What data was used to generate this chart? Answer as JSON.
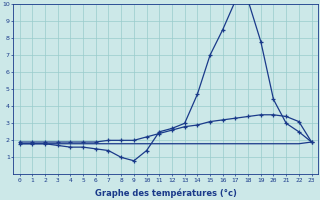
{
  "xlabel": "Graphe des températures (°c)",
  "x": [
    0,
    1,
    2,
    3,
    4,
    5,
    6,
    7,
    8,
    9,
    10,
    11,
    12,
    13,
    14,
    15,
    16,
    17,
    18,
    19,
    20,
    21,
    22,
    23
  ],
  "line1": [
    1.8,
    1.8,
    1.8,
    1.7,
    1.6,
    1.6,
    1.5,
    1.4,
    1.0,
    0.8,
    1.4,
    2.5,
    2.7,
    3.0,
    4.7,
    7.0,
    8.5,
    10.2,
    10.2,
    7.8,
    4.4,
    3.0,
    2.5,
    1.9
  ],
  "line2": [
    1.9,
    1.9,
    1.9,
    1.9,
    1.9,
    1.9,
    1.9,
    2.0,
    2.0,
    2.0,
    2.2,
    2.4,
    2.6,
    2.8,
    2.9,
    3.1,
    3.2,
    3.3,
    3.4,
    3.5,
    3.5,
    3.4,
    3.1,
    1.9
  ],
  "line3": [
    1.8,
    1.8,
    1.8,
    1.8,
    1.8,
    1.8,
    1.8,
    1.8,
    1.8,
    1.8,
    1.8,
    1.8,
    1.8,
    1.8,
    1.8,
    1.8,
    1.8,
    1.8,
    1.8,
    1.8,
    1.8,
    1.8,
    1.8,
    1.9
  ],
  "line_color": "#1a3a8a",
  "bg_color": "#cce8e8",
  "grid_color": "#99cccc",
  "ylim": [
    0,
    10
  ],
  "xlim": [
    -0.5,
    23.5
  ],
  "yticks": [
    1,
    2,
    3,
    4,
    5,
    6,
    7,
    8,
    9,
    10
  ],
  "xticks": [
    0,
    1,
    2,
    3,
    4,
    5,
    6,
    7,
    8,
    9,
    10,
    11,
    12,
    13,
    14,
    15,
    16,
    17,
    18,
    19,
    20,
    21,
    22,
    23
  ],
  "tick_fontsize": 4.5,
  "xlabel_fontsize": 6.0
}
